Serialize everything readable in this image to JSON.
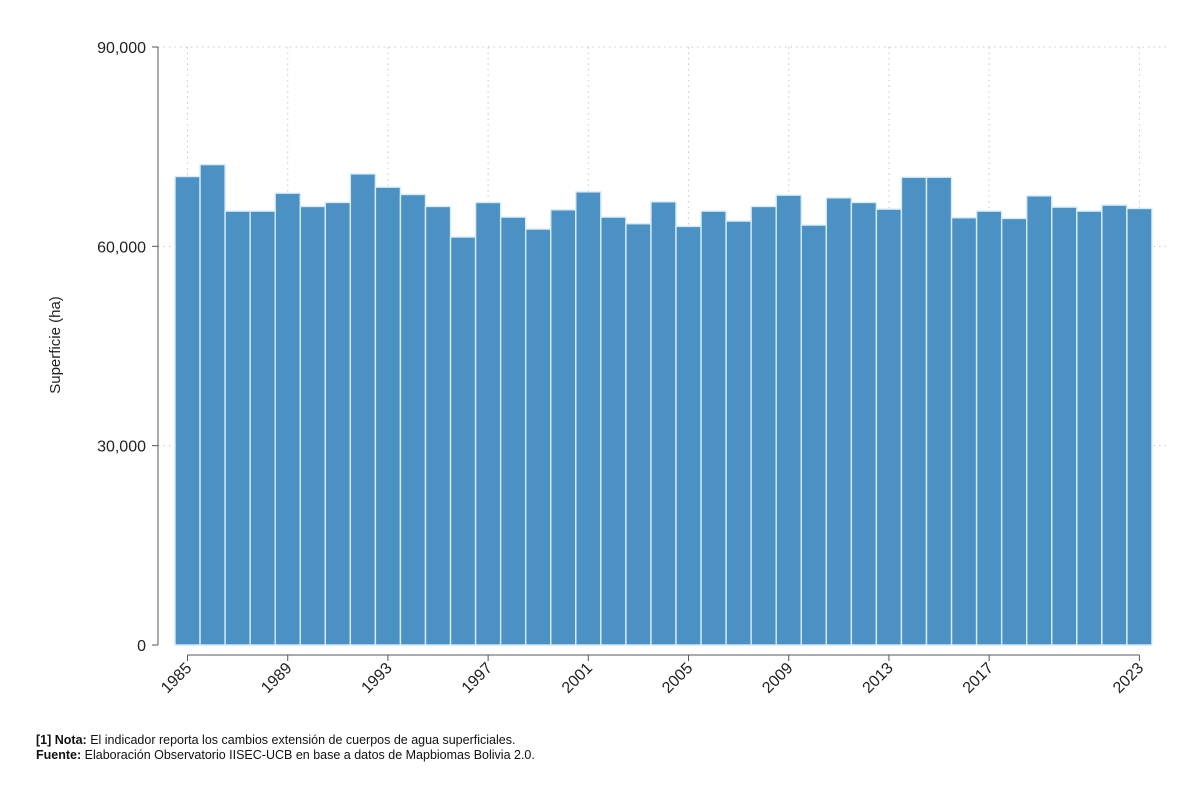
{
  "chart_data": {
    "type": "bar",
    "ylabel": "Superficie (ha)",
    "xlabel": "",
    "ylim": [
      0,
      90000
    ],
    "yticks": [
      0,
      30000,
      60000,
      90000
    ],
    "ytick_labels": [
      "0",
      "30,000",
      "60,000",
      "90,000"
    ],
    "xticks": [
      1985,
      1989,
      1993,
      1997,
      2001,
      2005,
      2009,
      2013,
      2017,
      2023
    ],
    "xtick_labels": [
      "1985",
      "1989",
      "1993",
      "1997",
      "2001",
      "2005",
      "2009",
      "2013",
      "2017",
      "2023"
    ],
    "grid": true,
    "categories": [
      1985,
      1986,
      1987,
      1988,
      1989,
      1990,
      1991,
      1992,
      1993,
      1994,
      1995,
      1996,
      1997,
      1998,
      1999,
      2000,
      2001,
      2002,
      2003,
      2004,
      2005,
      2006,
      2007,
      2008,
      2009,
      2010,
      2011,
      2012,
      2013,
      2014,
      2015,
      2016,
      2017,
      2018,
      2019,
      2020,
      2021,
      2022,
      2023
    ],
    "values": [
      70500,
      72300,
      65300,
      65300,
      68000,
      66000,
      66600,
      70900,
      68900,
      67800,
      66000,
      61400,
      66600,
      64400,
      62600,
      65500,
      68200,
      64400,
      63400,
      66700,
      63000,
      65300,
      63800,
      66000,
      67700,
      63200,
      67300,
      66600,
      65600,
      70400,
      70400,
      64300,
      65300,
      64200,
      67600,
      65900,
      65300,
      66200,
      65700
    ],
    "bar_color": "#4c91c3",
    "bar_edge_color": "#d7ecf8"
  },
  "notes": {
    "nota_label": "[1] Nota:",
    "nota_text": "El indicador reporta los cambios extensión de cuerpos de agua superficiales.",
    "fuente_label": "Fuente:",
    "fuente_text": "Elaboración Observatorio IISEC-UCB en base a datos de Mapbiomas Bolivia 2.0."
  }
}
